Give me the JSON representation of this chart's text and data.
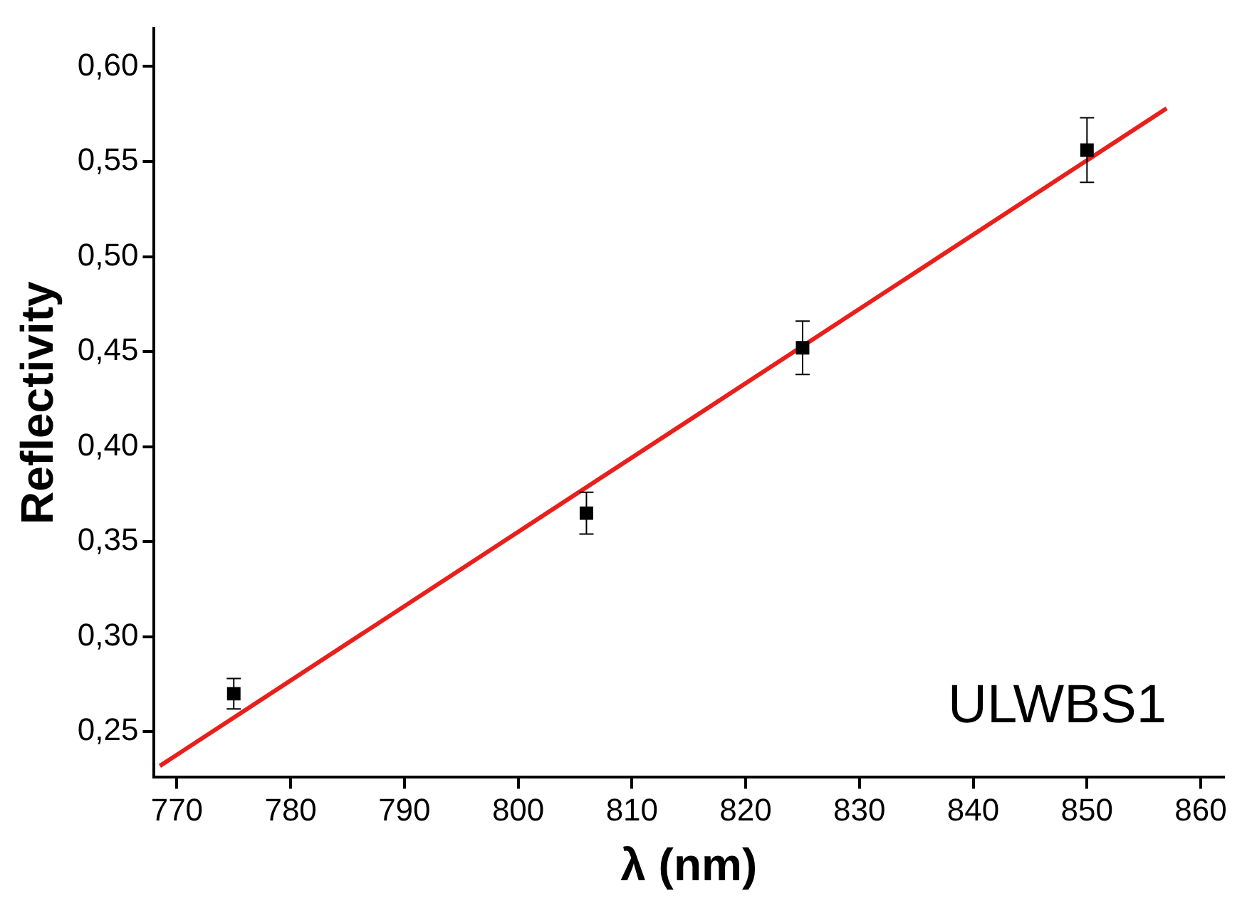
{
  "chart_data": {
    "type": "scatter",
    "xlabel": "λ (nm)",
    "ylabel": "Reflectivity",
    "xlim": [
      768,
      862
    ],
    "ylim": [
      0.226,
      0.62
    ],
    "xticks": [
      770,
      780,
      790,
      800,
      810,
      820,
      830,
      840,
      850,
      860
    ],
    "yticks": [
      {
        "value": 0.25,
        "label": "0,25"
      },
      {
        "value": 0.3,
        "label": "0,30"
      },
      {
        "value": 0.35,
        "label": "0,35"
      },
      {
        "value": 0.4,
        "label": "0,40"
      },
      {
        "value": 0.45,
        "label": "0,45"
      },
      {
        "value": 0.5,
        "label": "0,50"
      },
      {
        "value": 0.55,
        "label": "0,55"
      },
      {
        "value": 0.6,
        "label": "0,60"
      }
    ],
    "grid": false,
    "legend": false,
    "annotations": [
      "ULWBS1"
    ],
    "series": [
      {
        "marker": "square",
        "color": "#000000",
        "x": [
          775,
          806,
          825,
          850
        ],
        "values": [
          0.27,
          0.365,
          0.452,
          0.556
        ],
        "errors": [
          0.008,
          0.011,
          0.014,
          0.017
        ]
      },
      {
        "type": "line",
        "color": "#e8201c",
        "x": [
          768.5,
          857
        ],
        "values": [
          0.232,
          0.578
        ]
      }
    ]
  }
}
